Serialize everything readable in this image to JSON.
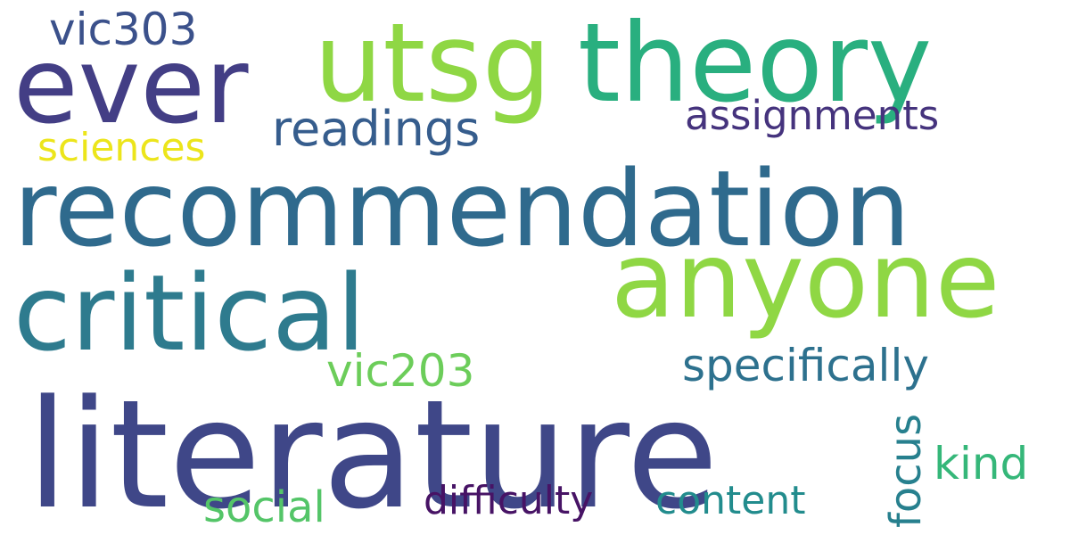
{
  "word_cloud": {
    "words": [
      {
        "id": "literature",
        "text": "literature",
        "color": "#3f4788"
      },
      {
        "id": "recommendation",
        "text": "recommendation",
        "color": "#2f6a8d"
      },
      {
        "id": "critical",
        "text": "critical",
        "color": "#2e7b8e"
      },
      {
        "id": "utsg",
        "text": "utsg",
        "color": "#8fd744"
      },
      {
        "id": "theory",
        "text": "theory",
        "color": "#29af7f"
      },
      {
        "id": "anyone",
        "text": "anyone",
        "color": "#8fd744"
      },
      {
        "id": "ever",
        "text": "ever",
        "color": "#433e85"
      },
      {
        "id": "readings",
        "text": "readings",
        "color": "#365d8d"
      },
      {
        "id": "assignments",
        "text": "assignments",
        "color": "#45337d"
      },
      {
        "id": "vic303",
        "text": "vic303",
        "color": "#3b518b"
      },
      {
        "id": "sciences",
        "text": "sciences",
        "color": "#ece51b"
      },
      {
        "id": "vic203",
        "text": "vic203",
        "color": "#6ccd5a"
      },
      {
        "id": "specifically",
        "text": "specifically",
        "color": "#2d718e"
      },
      {
        "id": "kind",
        "text": "kind",
        "color": "#35b779"
      },
      {
        "id": "focus",
        "text": "focus",
        "color": "#27808e"
      },
      {
        "id": "social",
        "text": "social",
        "color": "#54c568"
      },
      {
        "id": "difficulty",
        "text": "difficulty",
        "color": "#471365"
      },
      {
        "id": "content",
        "text": "content",
        "color": "#228c8d"
      }
    ]
  }
}
